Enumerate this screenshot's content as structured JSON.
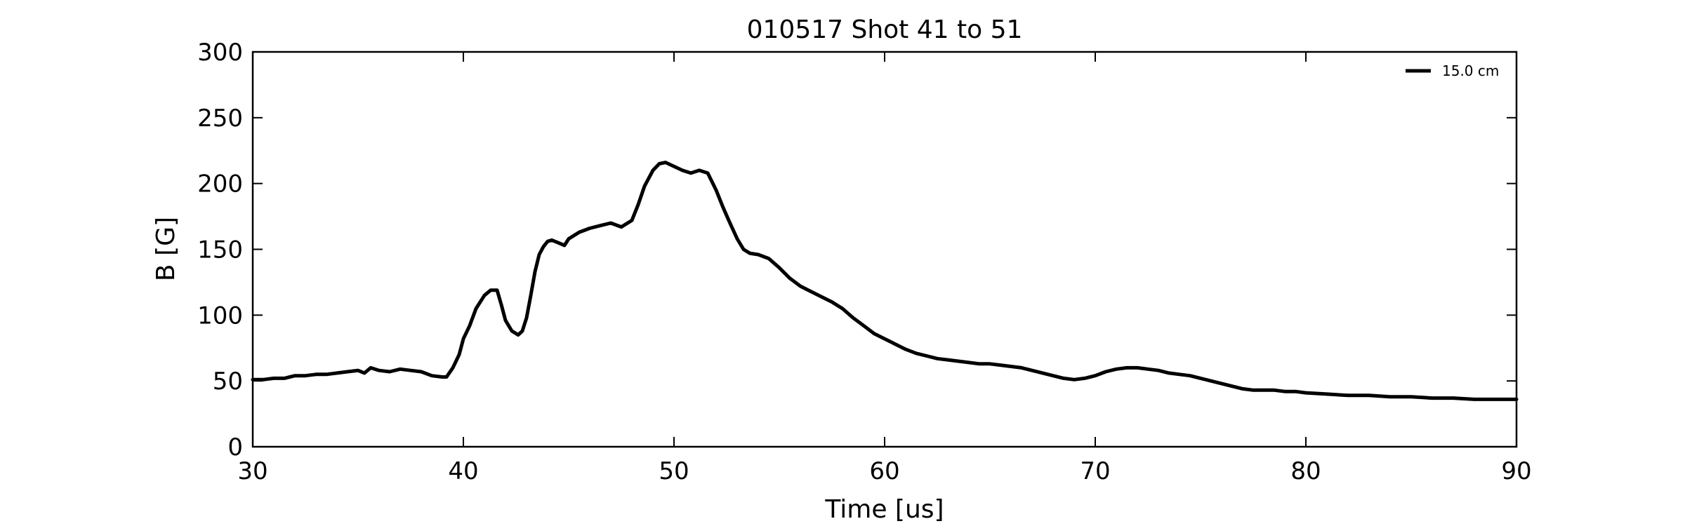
{
  "chart_data": {
    "type": "line",
    "title": "010517 Shot 41 to 51",
    "xlabel": "Time [us]",
    "ylabel": "B [G]",
    "xlim": [
      30,
      90
    ],
    "ylim": [
      0,
      300
    ],
    "xticks": [
      "30",
      "40",
      "50",
      "60",
      "70",
      "80",
      "90"
    ],
    "yticks": [
      "0",
      "50",
      "100",
      "150",
      "200",
      "250",
      "300"
    ],
    "grid": false,
    "legend": "top-right",
    "series": [
      {
        "name": "15.0 cm",
        "color": "#000000",
        "x": [
          30.0,
          30.5,
          31.0,
          31.5,
          32.0,
          32.5,
          33.0,
          33.5,
          34.0,
          34.5,
          35.0,
          35.3,
          35.6,
          36.0,
          36.5,
          37.0,
          37.5,
          38.0,
          38.5,
          39.0,
          39.2,
          39.5,
          39.8,
          40.0,
          40.3,
          40.6,
          41.0,
          41.3,
          41.6,
          41.8,
          42.0,
          42.3,
          42.6,
          42.8,
          43.0,
          43.2,
          43.4,
          43.6,
          43.8,
          44.0,
          44.2,
          44.5,
          44.8,
          45.0,
          45.5,
          46.0,
          46.5,
          47.0,
          47.5,
          48.0,
          48.3,
          48.6,
          49.0,
          49.3,
          49.6,
          50.0,
          50.4,
          50.8,
          51.2,
          51.6,
          52.0,
          52.3,
          52.6,
          53.0,
          53.3,
          53.6,
          54.0,
          54.5,
          55.0,
          55.5,
          56.0,
          56.5,
          57.0,
          57.5,
          58.0,
          58.5,
          59.0,
          59.5,
          60.0,
          60.5,
          61.0,
          61.5,
          62.0,
          62.5,
          63.0,
          63.5,
          64.0,
          64.5,
          65.0,
          65.5,
          66.0,
          66.5,
          67.0,
          67.5,
          68.0,
          68.5,
          69.0,
          69.5,
          70.0,
          70.5,
          71.0,
          71.5,
          72.0,
          72.5,
          73.0,
          73.5,
          74.0,
          74.5,
          75.0,
          75.5,
          76.0,
          76.5,
          77.0,
          77.5,
          78.0,
          78.5,
          79.0,
          79.5,
          80.0,
          81.0,
          82.0,
          83.0,
          84.0,
          85.0,
          86.0,
          87.0,
          88.0,
          89.0,
          90.0
        ],
        "y": [
          51,
          51,
          52,
          52,
          54,
          54,
          55,
          55,
          56,
          57,
          58,
          56,
          60,
          58,
          57,
          59,
          58,
          57,
          54,
          53,
          53,
          60,
          70,
          82,
          92,
          105,
          115,
          119,
          119,
          108,
          96,
          88,
          85,
          88,
          98,
          115,
          133,
          146,
          152,
          156,
          157,
          155,
          153,
          158,
          163,
          166,
          168,
          170,
          167,
          172,
          184,
          198,
          210,
          215,
          216,
          213,
          210,
          208,
          210,
          208,
          195,
          183,
          172,
          158,
          150,
          147,
          146,
          143,
          136,
          128,
          122,
          118,
          114,
          110,
          105,
          98,
          92,
          86,
          82,
          78,
          74,
          71,
          69,
          67,
          66,
          65,
          64,
          63,
          63,
          62,
          61,
          60,
          58,
          56,
          54,
          52,
          51,
          52,
          54,
          57,
          59,
          60,
          60,
          59,
          58,
          56,
          55,
          54,
          52,
          50,
          48,
          46,
          44,
          43,
          43,
          43,
          42,
          42,
          41,
          40,
          39,
          39,
          38,
          38,
          37,
          37,
          36,
          36,
          36
        ]
      }
    ]
  }
}
